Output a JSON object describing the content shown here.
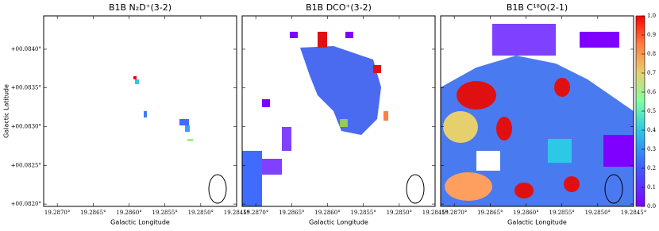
{
  "chart_data": [
    {
      "type": "heatmap",
      "title": "B1B N₂D⁺(3-2)",
      "xlabel": "Galactic Longitude",
      "ylabel": "Galactic Latitude",
      "xlim": [
        19.28719,
        19.2845
      ],
      "xticks": [
        {
          "value": 19.287,
          "label": "19.2870°"
        },
        {
          "value": 19.2865,
          "label": "19.2865°"
        },
        {
          "value": 19.286,
          "label": "19.2860°"
        },
        {
          "value": 19.2855,
          "label": "19.2855°"
        },
        {
          "value": 19.285,
          "label": "19.2850°"
        },
        {
          "value": 19.2845,
          "label": "19.2845°"
        }
      ],
      "ylim": [
        0.08197,
        0.08443
      ],
      "yticks": [
        {
          "value": 0.082,
          "label": "+00.0820°"
        },
        {
          "value": 0.0825,
          "label": "+00.0825°"
        },
        {
          "value": 0.083,
          "label": "+00.0830°"
        },
        {
          "value": 0.0835,
          "label": "+00.0835°"
        },
        {
          "value": 0.084,
          "label": "+00.0840°"
        }
      ]
    },
    {
      "type": "heatmap",
      "title": "B1B DCO⁺(3-2)",
      "xlabel": "Galactic Longitude",
      "xlim": [
        19.28719,
        19.2845
      ],
      "xticks": [
        {
          "value": 19.287,
          "label": "19.2870°"
        },
        {
          "value": 19.2865,
          "label": "19.2865°"
        },
        {
          "value": 19.286,
          "label": "19.2860°"
        },
        {
          "value": 19.2855,
          "label": "19.2855°"
        },
        {
          "value": 19.285,
          "label": "19.2850°"
        },
        {
          "value": 19.2845,
          "label": "19.2845°"
        }
      ]
    },
    {
      "type": "heatmap",
      "title": "B1B C¹⁸O(2-1)",
      "xlabel": "Galactic Longitude",
      "xlim": [
        19.28719,
        19.2845
      ],
      "xticks": [
        {
          "value": 19.287,
          "label": "19.2870°"
        },
        {
          "value": 19.2865,
          "label": "19.2865°"
        },
        {
          "value": 19.286,
          "label": "19.2860°"
        },
        {
          "value": 19.2855,
          "label": "19.2855°"
        },
        {
          "value": 19.285,
          "label": "19.2850°"
        },
        {
          "value": 19.2845,
          "label": "19.2845°"
        }
      ],
      "colorbar": {
        "lim": [
          0,
          1
        ],
        "ticks": [
          {
            "value": 0,
            "label": "0.0"
          },
          {
            "value": 0.1,
            "label": "0.1"
          },
          {
            "value": 0.2,
            "label": "0.2"
          },
          {
            "value": 0.3,
            "label": "0.3"
          },
          {
            "value": 0.4,
            "label": "0.4"
          },
          {
            "value": 0.5,
            "label": "0.5"
          },
          {
            "value": 0.6,
            "label": "0.6"
          },
          {
            "value": 0.7,
            "label": "0.7"
          },
          {
            "value": 0.8,
            "label": "0.8"
          },
          {
            "value": 0.9,
            "label": "0.9"
          },
          {
            "value": 1,
            "label": "1.0"
          }
        ]
      }
    }
  ]
}
